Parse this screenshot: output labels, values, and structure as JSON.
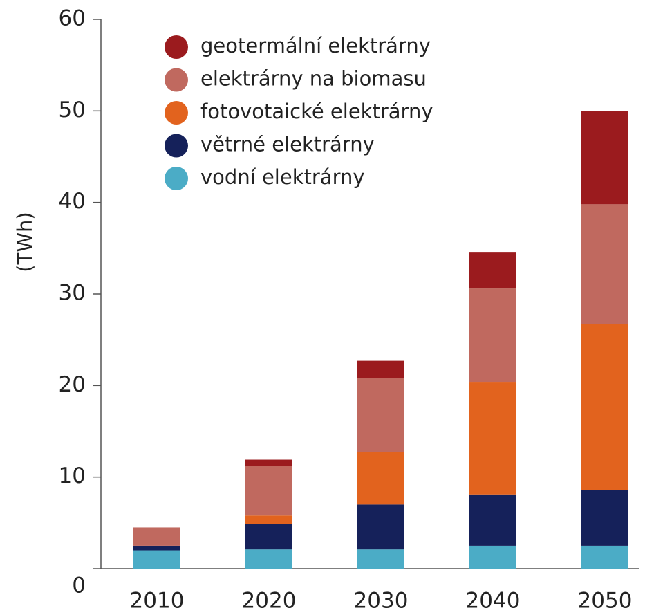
{
  "chart_data": {
    "type": "stacked_bar",
    "y_label": "(TWh)",
    "categories": [
      "2010",
      "2020",
      "2030",
      "2040",
      "2050"
    ],
    "series": [
      {
        "name": "vodní elektrárny",
        "color": "#4bacc6",
        "values": [
          2.0,
          2.1,
          2.1,
          2.5,
          2.5
        ]
      },
      {
        "name": "větrné elektrárny",
        "color": "#15215a",
        "values": [
          0.5,
          2.8,
          4.9,
          5.6,
          6.1
        ]
      },
      {
        "name": "fotovotaické elektrárny",
        "color": "#e2631e",
        "values": [
          0,
          0.9,
          5.7,
          12.3,
          18.1
        ]
      },
      {
        "name": "elektrárny na biomasu",
        "color": "#c0695f",
        "values": [
          2.0,
          5.4,
          8.1,
          10.2,
          13.1
        ]
      },
      {
        "name": "geotermální elektrárny",
        "color": "#9b1b1e",
        "values": [
          0,
          0.7,
          1.9,
          4.0,
          10.2
        ]
      }
    ],
    "ylim": [
      0,
      60
    ],
    "yticks": [
      0,
      10,
      20,
      30,
      40,
      50,
      60
    ],
    "legend": "top-left"
  }
}
